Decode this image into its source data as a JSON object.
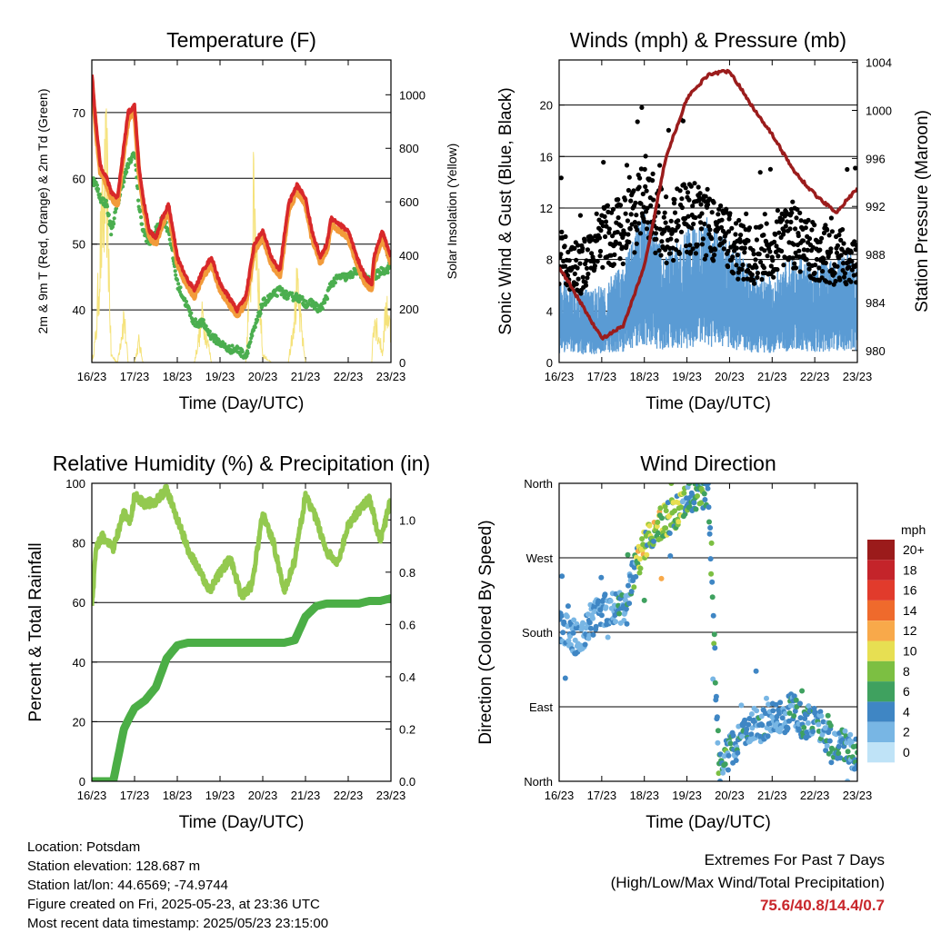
{
  "colors": {
    "temp2m": "#d8282a",
    "temp9m": "#f29b3a",
    "dewpoint": "#4bae4f",
    "solar": "#f5e27a",
    "wind": "#5a9bd4",
    "gust": "#000000",
    "pressure": "#9b1c1c",
    "rh": "#93c94f",
    "precip": "#4bae46"
  },
  "time_axis": {
    "ticks": [
      "16/23",
      "17/23",
      "18/23",
      "19/23",
      "20/23",
      "21/23",
      "22/23",
      "23/23"
    ],
    "label": "Time (Day/UTC)"
  },
  "chart_data": [
    {
      "type": "line",
      "title": "Temperature (F)",
      "ylabel": "2m & 9m T (Red, Orange) & 2m Td (Green)",
      "y2label": "Solar Insolation (Yellow)",
      "xlabel": "Time (Day/UTC)",
      "ylim": [
        32,
        78
      ],
      "yticks": [
        40,
        50,
        60,
        70
      ],
      "y2lim": [
        0,
        1130
      ],
      "y2ticks": [
        0,
        200,
        400,
        600,
        800,
        1000
      ],
      "x_days": [
        0,
        0.1,
        0.2,
        0.35,
        0.45,
        0.6,
        0.75,
        0.85,
        1.0,
        1.1,
        1.2,
        1.35,
        1.5,
        1.65,
        1.8,
        2.0,
        2.2,
        2.4,
        2.6,
        2.8,
        3.0,
        3.2,
        3.4,
        3.6,
        3.8,
        4.0,
        4.2,
        4.4,
        4.6,
        4.8,
        5.0,
        5.15,
        5.35,
        5.5,
        5.6,
        5.8,
        6.0,
        6.2,
        6.4,
        6.55,
        6.6,
        6.8,
        6.9,
        7.0
      ],
      "series": [
        {
          "values": [
            76,
            68,
            62,
            60,
            58,
            57,
            65,
            70,
            71,
            62,
            57,
            52,
            51,
            54,
            56,
            48,
            45,
            43,
            46,
            48,
            44,
            42,
            40,
            42,
            50,
            52,
            48,
            46,
            56,
            59,
            57,
            52,
            48,
            50,
            54,
            53,
            52,
            48,
            45,
            44,
            48,
            52,
            50,
            48
          ]
        },
        {
          "values": [
            75,
            67,
            61,
            59,
            57,
            56,
            64,
            69,
            70,
            61,
            56,
            51,
            50,
            53,
            55,
            47,
            44,
            42,
            45,
            47,
            43,
            41,
            39,
            41,
            49,
            51,
            47,
            45,
            55,
            58,
            56,
            51,
            47,
            49,
            53,
            52,
            51,
            47,
            44,
            43,
            47,
            51,
            49,
            47
          ]
        },
        {
          "values": [
            60,
            59,
            57,
            56,
            52,
            56,
            60,
            62,
            64,
            56,
            52,
            50,
            52,
            54,
            52,
            44,
            41,
            38,
            38,
            36,
            35,
            34,
            34,
            33,
            37,
            41,
            42,
            43,
            42,
            42,
            41,
            41,
            40,
            42,
            44,
            45,
            45,
            46,
            45,
            44,
            45,
            46,
            46,
            47
          ]
        },
        {
          "values": [
            0,
            150,
            620,
            1020,
            40,
            0,
            250,
            0,
            0,
            110,
            0,
            0,
            0,
            0,
            0,
            0,
            0,
            0,
            260,
            0,
            0,
            0,
            0,
            0,
            880,
            40,
            0,
            0,
            0,
            380,
            0,
            0,
            0,
            0,
            0,
            0,
            0,
            0,
            0,
            0,
            270,
            50,
            320,
            150
          ]
        }
      ]
    },
    {
      "type": "scatter",
      "title": "Winds (mph) & Pressure (mb)",
      "ylabel": "Sonic Wind & Gust (Blue, Black)",
      "y2label": "Station Pressure (Maroon)",
      "xlabel": "Time (Day/UTC)",
      "ylim": [
        0,
        23.5
      ],
      "yticks": [
        0,
        4,
        8,
        12,
        16,
        20
      ],
      "y2lim": [
        979,
        1004.2
      ],
      "y2ticks": [
        980,
        984,
        988,
        992,
        996,
        1000,
        1004
      ],
      "x_days": [
        0,
        0.5,
        1.0,
        1.5,
        2.0,
        2.5,
        3.0,
        3.5,
        4.0,
        4.5,
        5.0,
        5.5,
        6.0,
        6.5,
        7.0
      ],
      "series": [
        {
          "values": [
            3.5,
            3.0,
            3.2,
            4.0,
            6.5,
            4.5,
            5.5,
            6.0,
            5.0,
            4.0,
            3.5,
            4.5,
            4.0,
            4.5,
            4.5
          ]
        },
        {
          "values": [
            8.0,
            7.0,
            9.5,
            10.0,
            12.5,
            10.0,
            11.0,
            10.5,
            9.0,
            8.0,
            8.5,
            9.5,
            8.5,
            8.0,
            8.0
          ]
        },
        {
          "values": [
            987,
            984,
            981,
            982,
            987,
            996,
            1001,
            1003,
            1003.3,
            1000.5,
            998,
            995,
            993,
            991.5,
            993.5
          ]
        }
      ]
    },
    {
      "type": "line",
      "title": "Relative Humidity (%) & Precipitation (in)",
      "ylabel": "Percent & Total Rainfall",
      "xlabel": "Time (Day/UTC)",
      "ylim": [
        0,
        100
      ],
      "yticks": [
        0,
        20,
        40,
        60,
        80,
        100
      ],
      "y2lim": [
        0,
        1.14
      ],
      "y2ticks": [
        0.0,
        0.2,
        0.4,
        0.6,
        0.8,
        1.0
      ],
      "x_days": [
        0,
        0.1,
        0.25,
        0.5,
        0.75,
        0.9,
        1.0,
        1.25,
        1.5,
        1.75,
        2.0,
        2.25,
        2.5,
        2.75,
        3.0,
        3.25,
        3.5,
        3.75,
        4.0,
        4.25,
        4.5,
        4.75,
        5.0,
        5.25,
        5.5,
        5.75,
        6.0,
        6.25,
        6.5,
        6.75,
        7.0
      ],
      "series": [
        {
          "values": [
            58,
            79,
            82,
            78,
            90,
            87,
            96,
            93,
            94,
            98,
            88,
            78,
            71,
            64,
            70,
            75,
            62,
            66,
            90,
            80,
            64,
            74,
            96,
            88,
            77,
            73,
            86,
            91,
            95,
            80,
            95
          ]
        },
        {
          "values": [
            0,
            0,
            0,
            0,
            0.2,
            0.25,
            0.28,
            0.31,
            0.36,
            0.47,
            0.52,
            0.53,
            0.53,
            0.53,
            0.53,
            0.53,
            0.53,
            0.53,
            0.53,
            0.53,
            0.53,
            0.54,
            0.63,
            0.67,
            0.68,
            0.68,
            0.68,
            0.68,
            0.69,
            0.69,
            0.7
          ]
        }
      ]
    },
    {
      "type": "scatter",
      "title": "Wind Direction",
      "ylabel": "Direction (Colored By Speed)",
      "xlabel": "Time (Day/UTC)",
      "ylim": [
        0,
        360
      ],
      "yticks": [
        "North",
        "East",
        "South",
        "West",
        "North"
      ],
      "x_days": [
        0,
        0.25,
        0.5,
        0.75,
        1.0,
        1.25,
        1.5,
        1.75,
        2.0,
        2.25,
        2.5,
        2.75,
        3.0,
        3.25,
        3.5,
        3.75,
        4.0,
        4.25,
        4.5,
        4.75,
        5.0,
        5.25,
        5.5,
        5.75,
        6.0,
        6.25,
        6.5,
        6.75,
        7.0
      ],
      "series": [
        {
          "values": [
            190,
            178,
            170,
            195,
            205,
            210,
            210,
            250,
            285,
            305,
            315,
            325,
            340,
            345,
            355,
            20,
            35,
            50,
            70,
            65,
            80,
            75,
            90,
            65,
            80,
            55,
            45,
            40,
            30
          ]
        }
      ],
      "colorbar": {
        "title": "mph",
        "levels": [
          "20+",
          "18",
          "16",
          "14",
          "12",
          "10",
          "8",
          "6",
          "4",
          "2",
          "0"
        ],
        "colors": [
          "#9b1b1b",
          "#c4242a",
          "#e13b2c",
          "#ef6a2c",
          "#f8a94a",
          "#e7df52",
          "#7cbf42",
          "#3fa15f",
          "#3f86c4",
          "#78b6e4",
          "#bfe3f7"
        ]
      }
    }
  ],
  "info": {
    "location": "Location: Potsdam",
    "elevation": "Station elevation: 128.687 m",
    "latlon": "Station lat/lon: 44.6569; -74.9744",
    "created": "Figure created on Fri, 2025-05-23, at 23:36 UTC",
    "recent": "Most recent data timestamp: 2025/05/23 23:15:00"
  },
  "extremes": {
    "title": "Extremes For Past 7 Days",
    "subtitle": "(High/Low/Max Wind/Total Precipitation)",
    "values": "75.6/40.8/14.4/0.7"
  }
}
